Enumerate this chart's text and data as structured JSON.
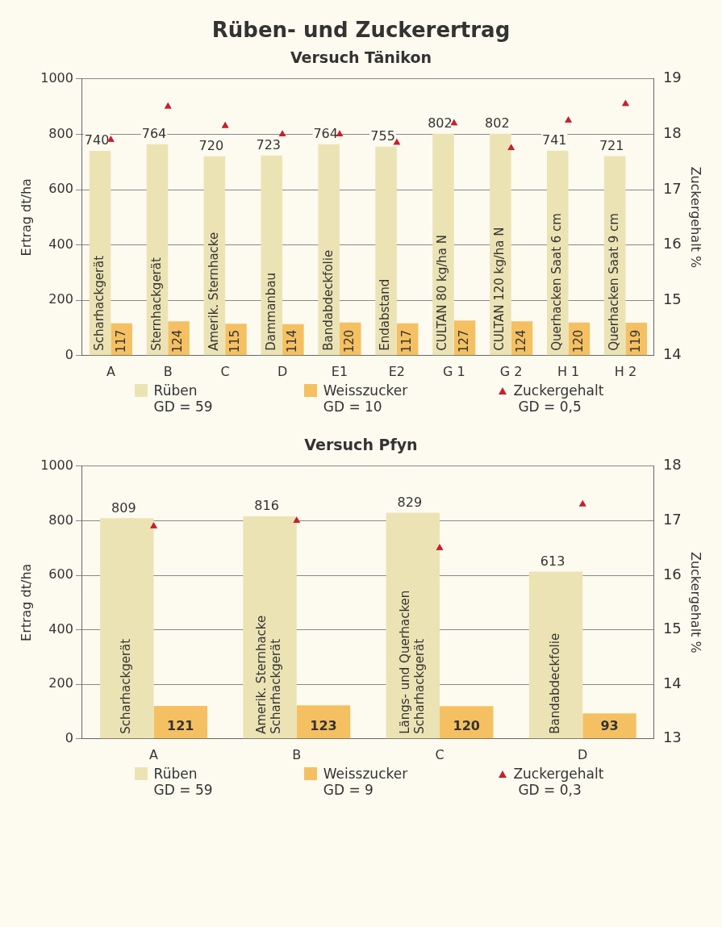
{
  "chart_data": [
    {
      "type": "bar",
      "title": "Rüben- und Zuckerertrag",
      "subtitle": "Versuch Tänikon",
      "ylabel": "Ertrag dt/ha",
      "y2label": "Zuckergehalt %",
      "categories": [
        "A",
        "B",
        "C",
        "D",
        "E1",
        "E2",
        "G 1",
        "G 2",
        "H 1",
        "H 2"
      ],
      "series": [
        {
          "name": "Rüben",
          "type": "bar",
          "color": "#ece3b5",
          "values": [
            740,
            764,
            720,
            723,
            764,
            755,
            802,
            802,
            741,
            721
          ],
          "value_labels": [
            "740",
            "764",
            "720",
            "723",
            "764",
            "755",
            "802",
            "802",
            "741",
            "721"
          ]
        },
        {
          "name": "Weisszucker",
          "type": "bar",
          "color": "#f5c062",
          "values": [
            117,
            124,
            115,
            114,
            120,
            117,
            127,
            124,
            120,
            119
          ],
          "value_labels": [
            "117",
            "124",
            "115",
            "114",
            "120",
            "117",
            "127",
            "124",
            "120",
            "119"
          ]
        },
        {
          "name": "Zuckergehalt",
          "type": "scatter",
          "axis": "y2",
          "marker": "triangle",
          "color": "#c8202e",
          "values": [
            17.9,
            18.5,
            18.15,
            18.0,
            18.0,
            17.85,
            18.2,
            17.75,
            18.25,
            18.55
          ]
        }
      ],
      "ylim": [
        0,
        1000
      ],
      "yticks": [
        0,
        200,
        400,
        600,
        800,
        1000
      ],
      "y2lim": [
        14,
        19
      ],
      "y2ticks": [
        14,
        15,
        16,
        17,
        18,
        19
      ],
      "grid": "y",
      "legend": "bottom",
      "annotations": [
        "GD = 59",
        "GD = 10",
        "GD = 0,5",
        {
          "text": "Scharhackgerät",
          "x": "A",
          "y": 0
        },
        {
          "text": "Sternhackgerät",
          "x": "B",
          "y": 0
        },
        {
          "text": "Amerik. Sternhacke",
          "x": "C",
          "y": 0
        },
        {
          "text": "Dammanbau",
          "x": "D",
          "y": 0
        },
        {
          "text": "Bandabdeckfolie",
          "x": "E1",
          "y": 0
        },
        {
          "text": "Endabstand",
          "x": "E2",
          "y": 0
        },
        {
          "text": "CULTAN 80 kg/ha N",
          "x": "G 1",
          "y": 0
        },
        {
          "text": "CULTAN 120 kg/ha N",
          "x": "G 2",
          "y": 0
        },
        {
          "text": "Querhacken Saat 6 cm",
          "x": "H 1",
          "y": 0
        },
        {
          "text": "Querhacken Saat 9 cm",
          "x": "H 2",
          "y": 0
        }
      ]
    },
    {
      "type": "bar",
      "title": "Versuch Pfyn",
      "ylabel": "Ertrag dt/ha",
      "y2label": "Zuckergehalt %",
      "categories": [
        "A",
        "B",
        "C",
        "D"
      ],
      "series": [
        {
          "name": "Rüben",
          "type": "bar",
          "color": "#ece3b5",
          "values": [
            809,
            816,
            829,
            613
          ],
          "value_labels": [
            "809",
            "816",
            "829",
            "613"
          ]
        },
        {
          "name": "Weisszucker",
          "type": "bar",
          "color": "#f5c062",
          "values": [
            121,
            123,
            120,
            93
          ],
          "value_labels": [
            "121",
            "123",
            "120",
            "93"
          ]
        },
        {
          "name": "Zuckergehalt",
          "type": "scatter",
          "axis": "y2",
          "marker": "triangle",
          "color": "#c8202e",
          "values": [
            16.9,
            17.0,
            16.5,
            17.3
          ]
        }
      ],
      "ylim": [
        0,
        1000
      ],
      "yticks": [
        0,
        200,
        400,
        600,
        800,
        1000
      ],
      "y2lim": [
        13,
        18
      ],
      "y2ticks": [
        13,
        14,
        15,
        16,
        17,
        18
      ],
      "grid": "y",
      "legend": "bottom",
      "annotations": [
        "GD = 59",
        "GD = 9",
        "GD = 0,3",
        {
          "text": "Scharhackgerät",
          "x": "A",
          "y": 0
        },
        {
          "text": "Amerik. Sternhacke\nScharhackgerät",
          "x": "B",
          "y": 0
        },
        {
          "text": "Längs- und Querhacken\nScharhackgerät",
          "x": "C",
          "y": 0
        },
        {
          "text": "Bandabdeckfolie",
          "x": "D",
          "y": 0
        }
      ]
    }
  ]
}
